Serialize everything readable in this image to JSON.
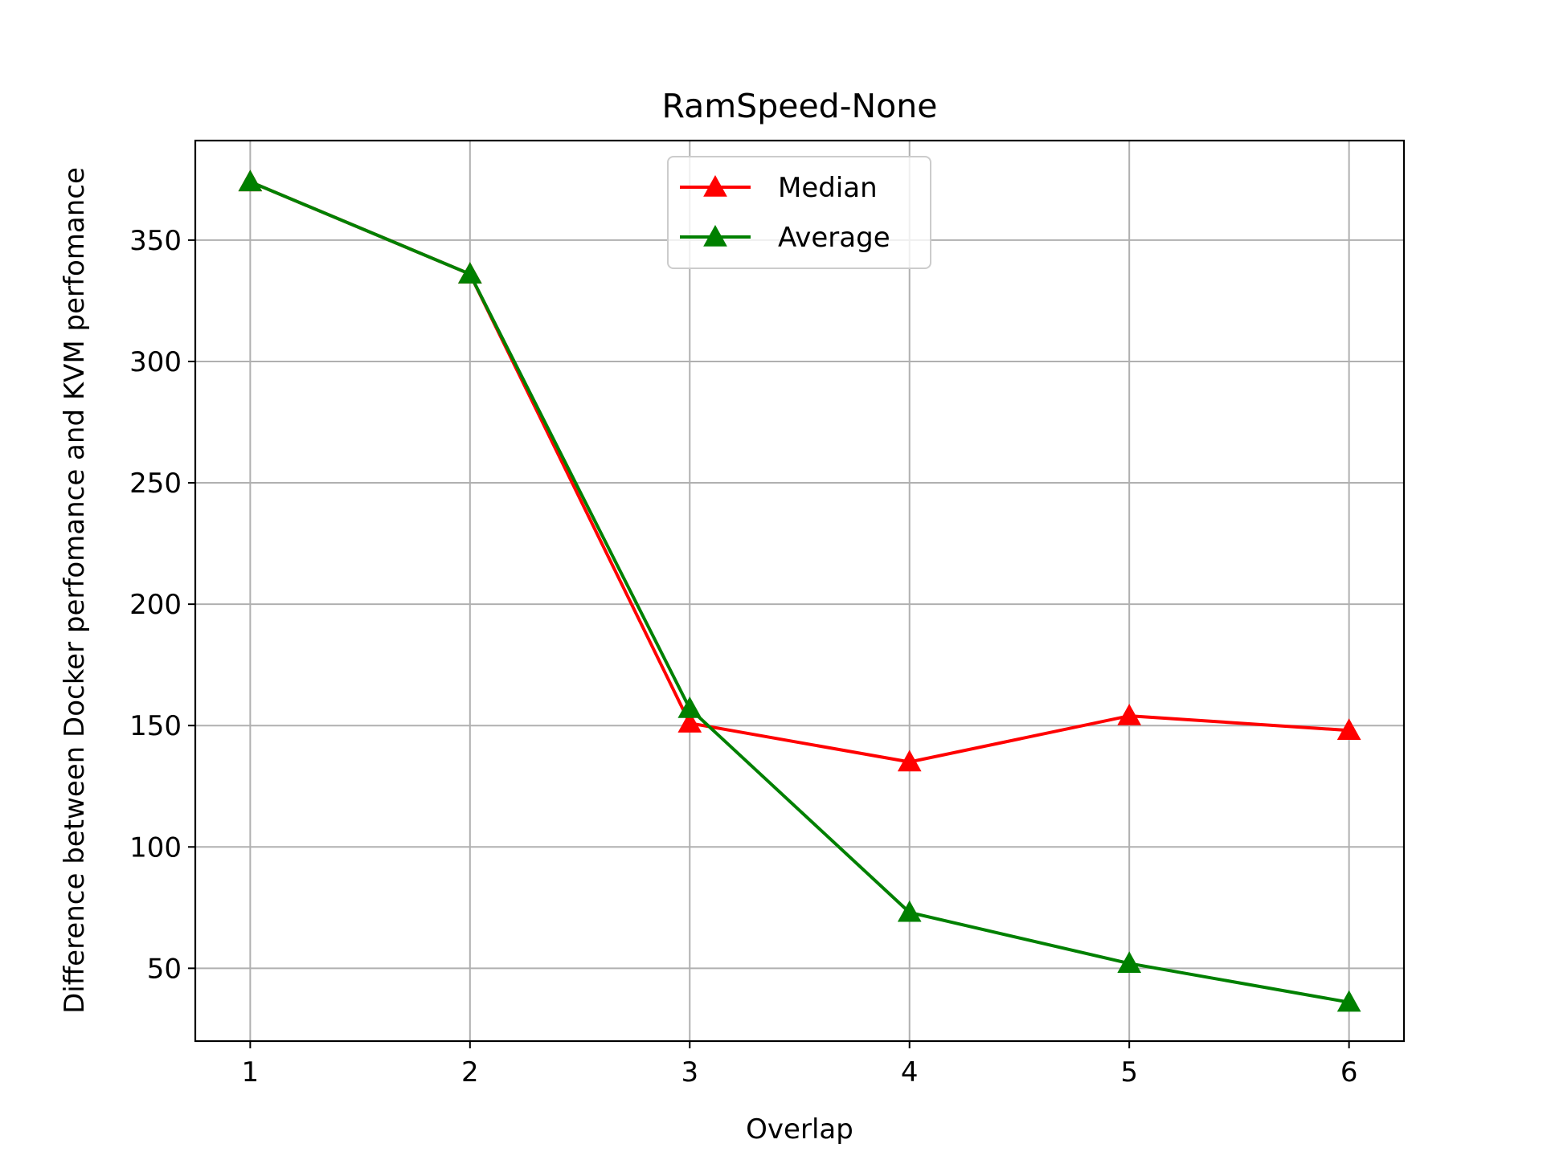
{
  "chart_data": {
    "type": "line",
    "title": "RamSpeed-None",
    "xlabel": "Overlap",
    "ylabel": "Difference between Docker perfomance and KVM perfomance",
    "x": [
      1,
      2,
      3,
      4,
      5,
      6
    ],
    "xlim": [
      0.75,
      6.25
    ],
    "ylim": [
      20,
      391
    ],
    "xticks": [
      1,
      2,
      3,
      4,
      5,
      6
    ],
    "yticks": [
      50,
      100,
      150,
      200,
      250,
      300,
      350
    ],
    "grid": true,
    "legend_position": "upper center",
    "series": [
      {
        "name": "Median",
        "color": "#ff0000",
        "marker": "triangle-up",
        "values": [
          374,
          336,
          151,
          135,
          154,
          148
        ]
      },
      {
        "name": "Average",
        "color": "#008000",
        "marker": "triangle-up",
        "values": [
          374,
          336,
          157,
          73,
          52,
          36
        ]
      }
    ]
  }
}
